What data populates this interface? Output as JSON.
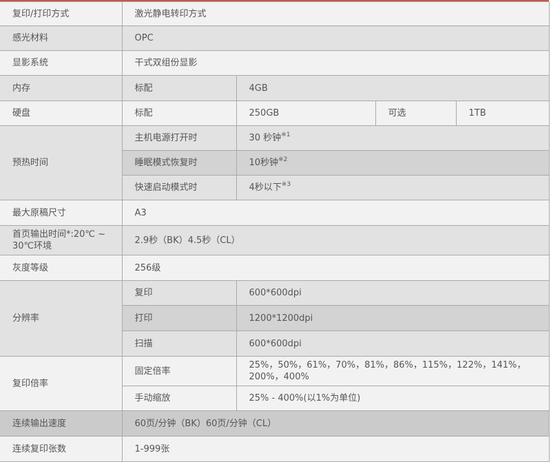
{
  "accent_color": "#c8574a",
  "rows": [
    {
      "label": "复印/打印方式",
      "value": "激光静电转印方式"
    },
    {
      "label": "感光材料",
      "value": "OPC"
    },
    {
      "label": "显影系统",
      "value": "干式双组份显影"
    },
    {
      "label": "内存",
      "sub": "标配",
      "value": "4GB"
    },
    {
      "label": "硬盘",
      "sub": "标配",
      "value": "250GB",
      "sub2": "可选",
      "value2": "1TB"
    },
    {
      "label": "预热时间",
      "items": [
        {
          "sub": "主机电源打开时",
          "value": "30 秒钟",
          "note": "※1"
        },
        {
          "sub": "睡眠模式恢复时",
          "value": "10秒钟",
          "note": "※2"
        },
        {
          "sub": "快速启动模式时",
          "value": "4秒以下",
          "note": "※3"
        }
      ]
    },
    {
      "label": "最大原稿尺寸",
      "value": "A3"
    },
    {
      "label": "首页输出时间*:20℃ ~ 30℃环境",
      "value": "2.9秒（BK）4.5秒（CL）"
    },
    {
      "label": "灰度等级",
      "value": "256级"
    },
    {
      "label": "分辨率",
      "items": [
        {
          "sub": "复印",
          "value": "600*600dpi"
        },
        {
          "sub": "打印",
          "value": "1200*1200dpi"
        },
        {
          "sub": "扫描",
          "value": "600*600dpi"
        }
      ]
    },
    {
      "label": "复印倍率",
      "items": [
        {
          "sub": "固定倍率",
          "value": "25%，50%，61%，70%，81%，86%，115%，122%，141%，200%，400%"
        },
        {
          "sub": "手动缩放",
          "value": "25% - 400%(以1%为单位)"
        }
      ]
    },
    {
      "label": "连续输出速度",
      "value": "60页/分钟（BK）60页/分钟（CL）"
    },
    {
      "label": "连续复印张数",
      "value": "1-999张"
    }
  ]
}
